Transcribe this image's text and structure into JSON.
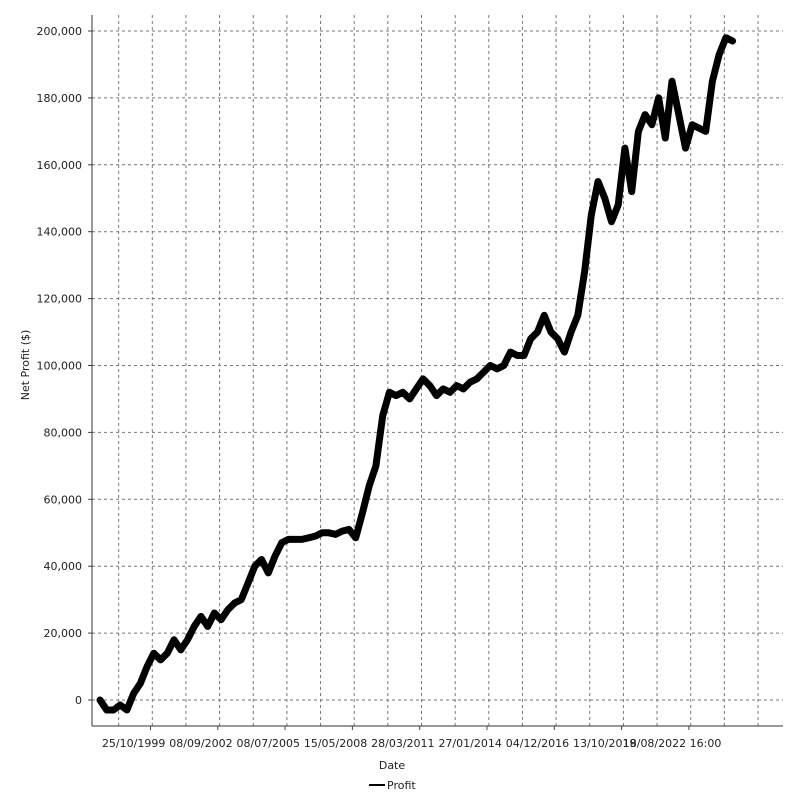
{
  "chart_data": {
    "type": "line",
    "title": "",
    "xlabel": "Date",
    "ylabel": "Net Profit ($)",
    "ylim": [
      -8000,
      205000
    ],
    "y_ticks": [
      {
        "value": 0,
        "label": "0"
      },
      {
        "value": 20000,
        "label": "20,000"
      },
      {
        "value": 40000,
        "label": "40,000"
      },
      {
        "value": 60000,
        "label": "60,000"
      },
      {
        "value": 80000,
        "label": "80,000"
      },
      {
        "value": 100000,
        "label": "100,000"
      },
      {
        "value": 120000,
        "label": "120,000"
      },
      {
        "value": 140000,
        "label": "140,000"
      },
      {
        "value": 160000,
        "label": "160,000"
      },
      {
        "value": 180000,
        "label": "180,000"
      },
      {
        "value": 200000,
        "label": "200,000"
      }
    ],
    "x_ticks": [
      "25/10/1999",
      "08/09/2002",
      "08/07/2005",
      "15/05/2008",
      "28/03/2011",
      "27/01/2014",
      "04/12/2016",
      "13/10/2019",
      "18/08/2022 16:00"
    ],
    "grid": true,
    "legend": {
      "position": "bottom",
      "entries": [
        "Profit"
      ]
    },
    "series": [
      {
        "name": "Profit",
        "color": "#000000",
        "x": [
          0.0,
          0.1,
          0.2,
          0.3,
          0.4,
          0.5,
          0.6,
          0.7,
          0.8,
          0.9,
          1.0,
          1.1,
          1.2,
          1.3,
          1.4,
          1.5,
          1.6,
          1.7,
          1.8,
          1.9,
          2.0,
          2.1,
          2.2,
          2.3,
          2.4,
          2.5,
          2.6,
          2.7,
          2.8,
          2.9,
          3.0,
          3.1,
          3.2,
          3.3,
          3.4,
          3.5,
          3.6,
          3.7,
          3.8,
          3.9,
          4.0,
          4.1,
          4.2,
          4.3,
          4.4,
          4.5,
          4.6,
          4.7,
          4.8,
          4.9,
          5.0,
          5.1,
          5.2,
          5.3,
          5.4,
          5.5,
          5.6,
          5.7,
          5.8,
          5.9,
          6.0,
          6.1,
          6.2,
          6.3,
          6.4,
          6.5,
          6.6,
          6.7,
          6.8,
          6.9,
          7.0,
          7.1,
          7.2,
          7.3,
          7.4,
          7.5,
          7.6,
          7.7,
          7.8,
          7.9,
          8.0,
          8.1,
          8.2,
          8.3,
          8.4,
          8.5,
          8.6,
          8.7,
          8.8,
          9.0,
          9.1,
          9.2,
          9.3,
          9.4
        ],
        "values": [
          0,
          -3000,
          -3000,
          -1500,
          -3000,
          2000,
          5000,
          10000,
          14000,
          12000,
          14000,
          18000,
          15000,
          18000,
          22000,
          25000,
          22000,
          26000,
          24000,
          27000,
          29000,
          30000,
          35000,
          40000,
          42000,
          38000,
          43000,
          47000,
          48000,
          48000,
          48000,
          48500,
          49000,
          50000,
          50000,
          49500,
          50500,
          51000,
          48500,
          56000,
          64000,
          70000,
          85000,
          92000,
          91000,
          92000,
          90000,
          93000,
          96000,
          94000,
          91000,
          93000,
          92000,
          94000,
          93000,
          95000,
          96000,
          98000,
          100000,
          99000,
          100000,
          104000,
          103000,
          103000,
          108000,
          110000,
          115000,
          110000,
          108000,
          104000,
          110000,
          115000,
          128000,
          145000,
          155000,
          150000,
          143000,
          148000,
          165000,
          152000,
          170000,
          175000,
          172000,
          180000,
          168000,
          185000,
          175000,
          165000,
          172000,
          170000,
          185000,
          193000,
          198000,
          197000
        ]
      }
    ]
  }
}
